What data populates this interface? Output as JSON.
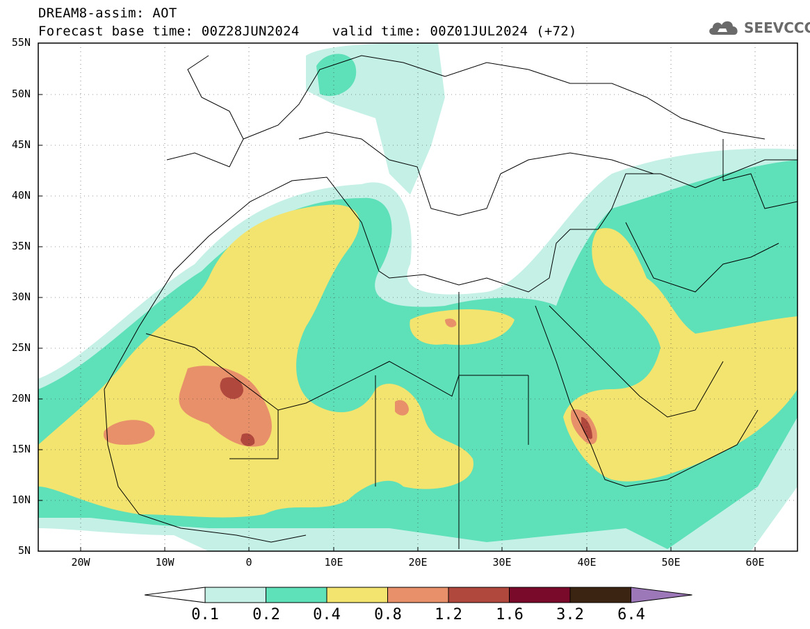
{
  "header": {
    "line1": "DREAM8-assim: AOT",
    "line2": "Forecast base time: 00Z28JUN2024    valid time: 00Z01JUL2024 (+72)"
  },
  "logo": {
    "text": "SEEVCCC",
    "icon": "cloud-icon"
  },
  "axes": {
    "lat_labels": [
      "55N",
      "50N",
      "45N",
      "40N",
      "35N",
      "30N",
      "25N",
      "20N",
      "15N",
      "10N",
      "5N"
    ],
    "lon_labels": [
      "20W",
      "10W",
      "0",
      "10E",
      "20E",
      "30E",
      "40E",
      "50E",
      "60E"
    ]
  },
  "colorbar": {
    "labels": [
      "0.1",
      "0.2",
      "0.4",
      "0.8",
      "1.2",
      "1.6",
      "3.2",
      "6.4"
    ],
    "colors": [
      "#ffffff",
      "#c4f0e6",
      "#5ee0b8",
      "#f2e46e",
      "#e8906a",
      "#b0483e",
      "#7a0a2a",
      "#3c2412",
      "#9c78b8"
    ]
  },
  "legend_colors": {
    "land": "#ffffff",
    "sea": "#ffffff",
    "border": "#000000"
  }
}
